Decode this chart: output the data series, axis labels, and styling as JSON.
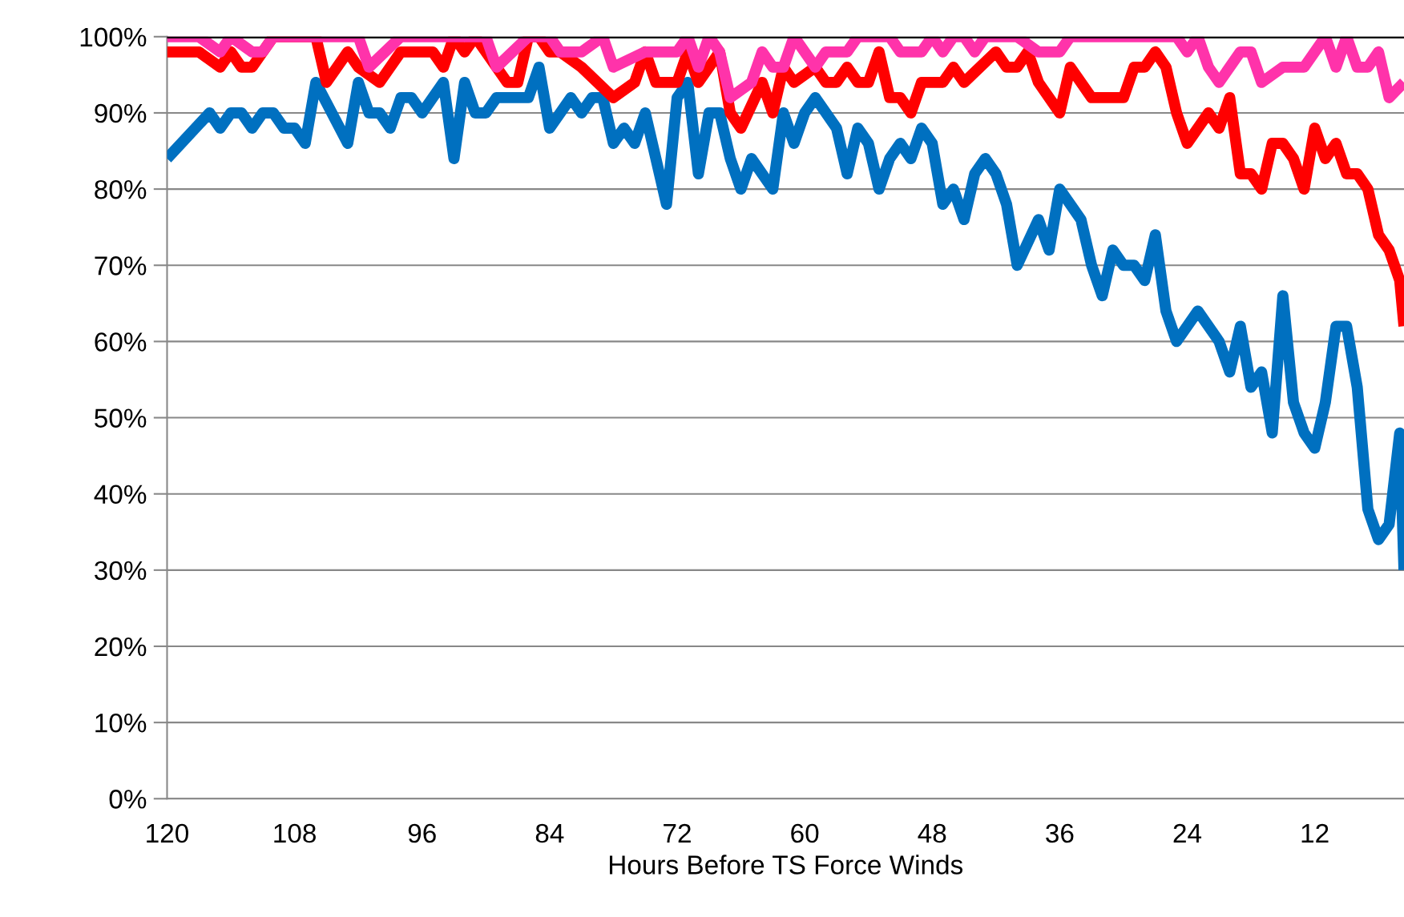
{
  "chart_data": {
    "type": "line",
    "xlabel": "Hours Before TS Force Winds",
    "xlim": [
      120,
      3.6
    ],
    "xticks": [
      120,
      108,
      96,
      84,
      72,
      60,
      48,
      36,
      24,
      12
    ],
    "ylim": [
      0,
      100
    ],
    "yticks": [
      {
        "value": 0,
        "label": "0%"
      },
      {
        "value": 10,
        "label": "10%"
      },
      {
        "value": 20,
        "label": "20%"
      },
      {
        "value": 30,
        "label": "30%"
      },
      {
        "value": 40,
        "label": "40%"
      },
      {
        "value": 50,
        "label": "50%"
      },
      {
        "value": 60,
        "label": "60%"
      },
      {
        "value": 70,
        "label": "70%"
      },
      {
        "value": 80,
        "label": "80%"
      },
      {
        "value": 90,
        "label": "90%"
      },
      {
        "value": 100,
        "label": "100%"
      }
    ],
    "grid": "y",
    "marker": "none",
    "line_style": "solid",
    "ref_lines": [
      {
        "axis": "y",
        "value": 100,
        "color": "#000000"
      }
    ],
    "series": [
      {
        "color": "#0070c0",
        "x": [
          120,
          116,
          115,
          114,
          113,
          112,
          111,
          110,
          109,
          108,
          107,
          106,
          103,
          102,
          101,
          100,
          99,
          98,
          97,
          96,
          94,
          93,
          92,
          91,
          90,
          89,
          86,
          85,
          84,
          82,
          81,
          80,
          79,
          78,
          77,
          76,
          75,
          73,
          72,
          71,
          70,
          69,
          68,
          67,
          66,
          65,
          63,
          62,
          61,
          60,
          59,
          57,
          56,
          55,
          54,
          53,
          52,
          51,
          50,
          49,
          48,
          47,
          46,
          45,
          44,
          43,
          42,
          41,
          40,
          38,
          37,
          36,
          34,
          33,
          32,
          31,
          30,
          29,
          28,
          27,
          26,
          25,
          23,
          21,
          20,
          19,
          18,
          17,
          16,
          15,
          14,
          13,
          12,
          11,
          10,
          9,
          8,
          7,
          6,
          5,
          4,
          3.6
        ],
        "values": [
          84,
          90,
          88,
          90,
          90,
          88,
          90,
          90,
          88,
          88,
          86,
          94,
          86,
          94,
          90,
          90,
          88,
          92,
          92,
          90,
          94,
          84,
          94,
          90,
          90,
          92,
          92,
          96,
          88,
          92,
          90,
          92,
          92,
          86,
          88,
          86,
          90,
          78,
          92,
          94,
          82,
          90,
          90,
          84,
          80,
          84,
          80,
          90,
          86,
          90,
          92,
          88,
          82,
          88,
          86,
          80,
          84,
          86,
          84,
          88,
          86,
          78,
          80,
          76,
          82,
          84,
          82,
          78,
          70,
          76,
          72,
          80,
          76,
          70,
          66,
          72,
          70,
          70,
          68,
          74,
          64,
          60,
          64,
          60,
          56,
          62,
          54,
          56,
          48,
          66,
          52,
          48,
          46,
          52,
          62,
          62,
          54,
          38,
          34,
          36,
          48,
          30
        ]
      },
      {
        "color": "#ff0000",
        "x": [
          120,
          117,
          115,
          114,
          113,
          112,
          110,
          106,
          105,
          103,
          102,
          100,
          98,
          95,
          94,
          93,
          92,
          91,
          88,
          87,
          86,
          85,
          84,
          83,
          81,
          78,
          76,
          75,
          74,
          72,
          71,
          70,
          68,
          67,
          66,
          64,
          63,
          62,
          61,
          59,
          58,
          57,
          56,
          55,
          54,
          53,
          52,
          51,
          50,
          49,
          47,
          46,
          45,
          42,
          41,
          40,
          39,
          38,
          36,
          35,
          33,
          30,
          29,
          28,
          27,
          26,
          25,
          24,
          22,
          21,
          20,
          19,
          18,
          17,
          16,
          15,
          14,
          13,
          12,
          11,
          10,
          9,
          8,
          7,
          6,
          5,
          4,
          3.6
        ],
        "values": [
          98,
          98,
          96,
          98,
          96,
          96,
          100,
          100,
          94,
          98,
          96,
          94,
          98,
          98,
          96,
          100,
          98,
          100,
          94,
          94,
          100,
          100,
          98,
          98,
          96,
          92,
          94,
          98,
          94,
          94,
          98,
          94,
          98,
          90,
          88,
          94,
          90,
          96,
          94,
          96,
          94,
          94,
          96,
          94,
          94,
          98,
          92,
          92,
          90,
          94,
          94,
          96,
          94,
          98,
          96,
          96,
          98,
          94,
          90,
          96,
          92,
          92,
          96,
          96,
          98,
          96,
          90,
          86,
          90,
          88,
          92,
          82,
          82,
          80,
          86,
          86,
          84,
          80,
          88,
          84,
          86,
          82,
          82,
          80,
          74,
          72,
          68,
          62
        ]
      },
      {
        "color": "#ff33aa",
        "x": [
          120,
          117,
          115,
          114,
          112,
          111,
          110,
          102,
          101,
          98,
          90,
          89,
          86,
          84,
          83,
          81,
          79,
          78,
          75,
          74,
          72,
          71,
          70,
          69,
          68,
          67,
          65,
          64,
          63,
          62,
          61,
          59,
          58,
          56,
          55,
          52,
          51,
          49,
          48,
          47,
          46,
          45,
          44,
          43,
          40,
          38,
          37,
          36,
          35,
          25,
          24,
          23,
          22,
          21,
          19,
          18,
          17,
          15,
          13,
          11,
          10,
          9,
          8,
          7,
          6,
          5,
          3.6
        ],
        "values": [
          100,
          100,
          98,
          100,
          98,
          98,
          100,
          100,
          96,
          100,
          100,
          96,
          100,
          100,
          98,
          98,
          100,
          96,
          98,
          98,
          98,
          100,
          96,
          100,
          98,
          92,
          94,
          98,
          96,
          96,
          100,
          96,
          98,
          98,
          100,
          100,
          98,
          98,
          100,
          98,
          100,
          100,
          98,
          100,
          100,
          98,
          98,
          98,
          100,
          100,
          98,
          100,
          96,
          94,
          98,
          98,
          94,
          96,
          96,
          100,
          96,
          100,
          96,
          96,
          98,
          92,
          94
        ]
      }
    ]
  }
}
